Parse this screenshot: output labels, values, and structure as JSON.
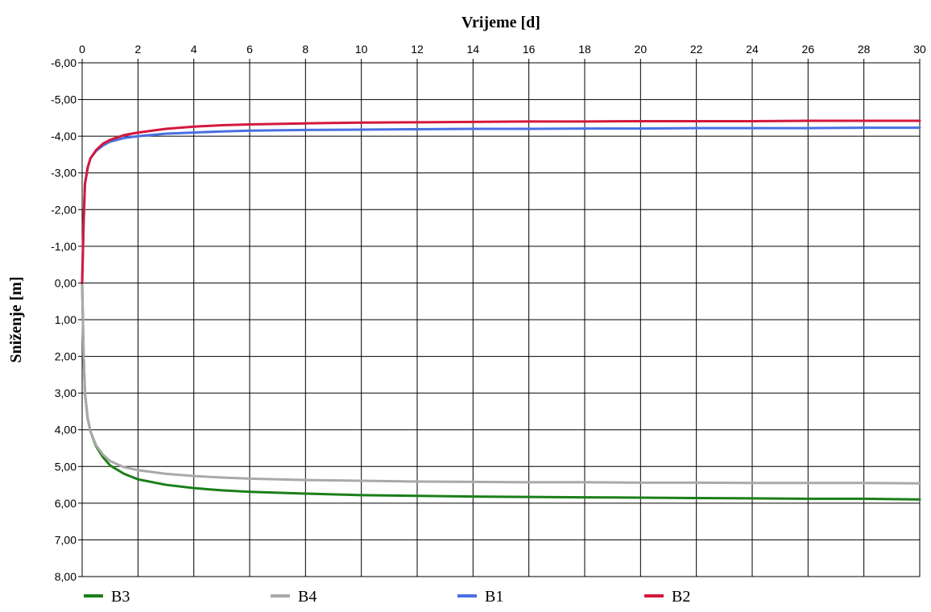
{
  "chart_data": {
    "type": "line",
    "title": "",
    "xlabel": "Vrijeme [d]",
    "ylabel": "Sniženje [m]",
    "xlim": [
      0,
      30
    ],
    "ylim": [
      -6,
      8
    ],
    "y_inverted": true,
    "x_axis_position": "top",
    "grid": true,
    "legend_position": "bottom",
    "x_ticks": [
      {
        "value": 0,
        "label": "0"
      },
      {
        "value": 2,
        "label": "2"
      },
      {
        "value": 4,
        "label": "4"
      },
      {
        "value": 6,
        "label": "6"
      },
      {
        "value": 8,
        "label": "8"
      },
      {
        "value": 10,
        "label": "10"
      },
      {
        "value": 12,
        "label": "12"
      },
      {
        "value": 14,
        "label": "14"
      },
      {
        "value": 16,
        "label": "16"
      },
      {
        "value": 18,
        "label": "18"
      },
      {
        "value": 20,
        "label": "20"
      },
      {
        "value": 22,
        "label": "22"
      },
      {
        "value": 24,
        "label": "24"
      },
      {
        "value": 26,
        "label": "26"
      },
      {
        "value": 28,
        "label": "28"
      },
      {
        "value": 30,
        "label": "30"
      }
    ],
    "y_ticks": [
      {
        "value": -6,
        "label": "-6,00"
      },
      {
        "value": -5,
        "label": "-5,00"
      },
      {
        "value": -4,
        "label": "-4,00"
      },
      {
        "value": -3,
        "label": "-3,00"
      },
      {
        "value": -2,
        "label": "-2,00"
      },
      {
        "value": -1,
        "label": "-1,00"
      },
      {
        "value": 0,
        "label": "0,00"
      },
      {
        "value": 1,
        "label": "1,00"
      },
      {
        "value": 2,
        "label": "2,00"
      },
      {
        "value": 3,
        "label": "3,00"
      },
      {
        "value": 4,
        "label": "4,00"
      },
      {
        "value": 5,
        "label": "5,00"
      },
      {
        "value": 6,
        "label": "6,00"
      },
      {
        "value": 7,
        "label": "7,00"
      },
      {
        "value": 8,
        "label": "8,00"
      }
    ],
    "series": [
      {
        "name": "B3",
        "color": "#1a7f1a",
        "x": [
          0,
          0.05,
          0.1,
          0.2,
          0.3,
          0.5,
          0.75,
          1,
          1.5,
          2,
          3,
          4,
          5,
          6,
          8,
          10,
          12,
          14,
          16,
          18,
          20,
          22,
          24,
          26,
          28,
          30
        ],
        "y": [
          0,
          1.9,
          3.0,
          3.7,
          4.05,
          4.45,
          4.75,
          4.97,
          5.2,
          5.35,
          5.5,
          5.59,
          5.65,
          5.69,
          5.74,
          5.78,
          5.8,
          5.82,
          5.83,
          5.84,
          5.85,
          5.86,
          5.87,
          5.88,
          5.88,
          5.9
        ]
      },
      {
        "name": "B4",
        "color": "#a9a9a9",
        "x": [
          0,
          0.05,
          0.1,
          0.2,
          0.3,
          0.5,
          0.75,
          1,
          1.5,
          2,
          3,
          4,
          5,
          6,
          8,
          10,
          12,
          14,
          16,
          18,
          20,
          22,
          24,
          26,
          28,
          30
        ],
        "y": [
          0,
          1.9,
          3.0,
          3.7,
          4.05,
          4.42,
          4.68,
          4.85,
          5.02,
          5.1,
          5.2,
          5.26,
          5.3,
          5.33,
          5.37,
          5.39,
          5.41,
          5.42,
          5.43,
          5.43,
          5.44,
          5.44,
          5.45,
          5.45,
          5.45,
          5.46
        ]
      },
      {
        "name": "B1",
        "color": "#4a6fe3",
        "x": [
          0,
          0.05,
          0.1,
          0.2,
          0.3,
          0.5,
          0.75,
          1,
          1.5,
          2,
          3,
          4,
          5,
          6,
          8,
          10,
          12,
          14,
          16,
          18,
          20,
          22,
          24,
          26,
          28,
          30
        ],
        "y": [
          0,
          -1.6,
          -2.7,
          -3.15,
          -3.4,
          -3.6,
          -3.75,
          -3.85,
          -3.95,
          -4.0,
          -4.07,
          -4.1,
          -4.13,
          -4.15,
          -4.17,
          -4.18,
          -4.19,
          -4.2,
          -4.2,
          -4.21,
          -4.21,
          -4.22,
          -4.22,
          -4.22,
          -4.23,
          -4.23
        ]
      },
      {
        "name": "B2",
        "color": "#d4183d",
        "x": [
          0,
          0.05,
          0.1,
          0.2,
          0.3,
          0.5,
          0.75,
          1,
          1.5,
          2,
          3,
          4,
          5,
          6,
          8,
          10,
          12,
          14,
          16,
          18,
          20,
          22,
          24,
          26,
          28,
          30
        ],
        "y": [
          0,
          -1.6,
          -2.7,
          -3.15,
          -3.4,
          -3.62,
          -3.8,
          -3.9,
          -4.03,
          -4.1,
          -4.2,
          -4.26,
          -4.3,
          -4.32,
          -4.35,
          -4.37,
          -4.38,
          -4.39,
          -4.4,
          -4.4,
          -4.41,
          -4.41,
          -4.41,
          -4.42,
          -4.42,
          -4.42
        ]
      }
    ]
  }
}
